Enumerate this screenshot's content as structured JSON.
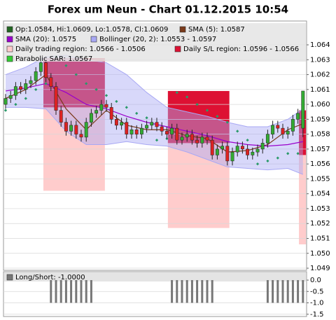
{
  "chart_data": {
    "type": "candlestick",
    "title": "Forex um Neun - Chart 01.12.2015 10:54",
    "ohlc_name": "Op:1.0584, Hi:1.0609, Lo:1.0578, Cl:1.0609",
    "ohlc_color": "#226622",
    "up_color": "#33aa33",
    "down_color": "#dd2222",
    "open": [
      1.06,
      1.0604,
      1.0606,
      1.0612,
      1.061,
      1.0614,
      1.0616,
      1.0622,
      1.0628,
      1.0618,
      1.0612,
      1.0596,
      1.0588,
      1.0582,
      1.0586,
      1.058,
      1.0578,
      1.0588,
      1.0594,
      1.0596,
      1.06,
      1.0598,
      1.059,
      1.0586,
      1.0588,
      1.058,
      1.0583,
      1.058,
      1.0584,
      1.0586,
      1.0588,
      1.0585,
      1.0582,
      1.058,
      1.0584,
      1.0576,
      1.0578,
      1.058,
      1.0576,
      1.0574,
      1.0578,
      1.0576,
      1.0566,
      1.057,
      1.0572,
      1.0562,
      1.0568,
      1.0572,
      1.057,
      1.0566,
      1.0568,
      1.057,
      1.0574,
      1.058,
      1.0586,
      1.0584,
      1.058,
      1.0582,
      1.059,
      1.0584
    ],
    "high": [
      1.0607,
      1.0609,
      1.0615,
      1.0615,
      1.0617,
      1.0619,
      1.0625,
      1.0631,
      1.0631,
      1.0621,
      1.0615,
      1.0599,
      1.0591,
      1.0589,
      1.0589,
      1.0583,
      1.0591,
      1.0597,
      1.0599,
      1.0603,
      1.0603,
      1.0601,
      1.0593,
      1.0591,
      1.0591,
      1.0586,
      1.0586,
      1.0587,
      1.0589,
      1.0591,
      1.0591,
      1.0588,
      1.0585,
      1.0587,
      1.0587,
      1.0581,
      1.0583,
      1.0583,
      1.0579,
      1.0581,
      1.0581,
      1.0579,
      1.0573,
      1.0575,
      1.0575,
      1.0571,
      1.0575,
      1.0575,
      1.0573,
      1.0571,
      1.0573,
      1.0577,
      1.0583,
      1.0589,
      1.0589,
      1.0587,
      1.0585,
      1.0593,
      1.0597,
      1.0609
    ],
    "low": [
      1.0597,
      1.0601,
      1.0603,
      1.0607,
      1.0607,
      1.0611,
      1.0613,
      1.0619,
      1.0615,
      1.0609,
      1.0593,
      1.0585,
      1.0579,
      1.0579,
      1.0577,
      1.0575,
      1.0575,
      1.0585,
      1.0591,
      1.0593,
      1.0595,
      1.0587,
      1.0583,
      1.0583,
      1.0577,
      1.0577,
      1.0577,
      1.0577,
      1.0581,
      1.0583,
      1.0582,
      1.0579,
      1.0577,
      1.0577,
      1.0573,
      1.0573,
      1.0575,
      1.0573,
      1.0571,
      1.0571,
      1.0573,
      1.0563,
      1.0563,
      1.0567,
      1.0559,
      1.0559,
      1.0565,
      1.0567,
      1.0563,
      1.0563,
      1.0565,
      1.0567,
      1.0571,
      1.0577,
      1.0581,
      1.0577,
      1.0577,
      1.0579,
      1.0587,
      1.0578
    ],
    "close": [
      1.0604,
      1.0606,
      1.0612,
      1.061,
      1.0614,
      1.0616,
      1.0622,
      1.0628,
      1.0618,
      1.0612,
      1.0596,
      1.0588,
      1.0582,
      1.0586,
      1.058,
      1.0578,
      1.0588,
      1.0594,
      1.0596,
      1.06,
      1.0598,
      1.059,
      1.0586,
      1.0588,
      1.058,
      1.0583,
      1.058,
      1.0584,
      1.0586,
      1.0588,
      1.0585,
      1.0582,
      1.058,
      1.0584,
      1.0576,
      1.0578,
      1.058,
      1.0576,
      1.0574,
      1.0578,
      1.0576,
      1.0566,
      1.057,
      1.0572,
      1.0562,
      1.0568,
      1.0572,
      1.057,
      1.0566,
      1.0568,
      1.057,
      1.0574,
      1.058,
      1.0586,
      1.0584,
      1.058,
      1.0582,
      1.059,
      1.0594,
      1.0609
    ],
    "ylim": [
      1.04886,
      1.0656
    ],
    "yticks": [
      1.049,
      {
        "value": 1.05,
        "label": "1.050"
      },
      1.051,
      1.052,
      1.053,
      1.054,
      1.055,
      1.056,
      1.057,
      1.058,
      1.059,
      {
        "value": 1.06,
        "label": "1.060"
      },
      1.061,
      1.062,
      1.063,
      1.064
    ],
    "grid": true,
    "bollinger": {
      "name": "Bollinger (20, 2): 1.0553 - 1.0597",
      "color": "#a8a8f4",
      "x": [
        0,
        4,
        8,
        12,
        16,
        20,
        24,
        28,
        32,
        36,
        40,
        44,
        48,
        52,
        56,
        59
      ],
      "upper": [
        1.062,
        1.0625,
        1.0632,
        1.0633,
        1.063,
        1.0628,
        1.062,
        1.0608,
        1.0598,
        1.0595,
        1.0592,
        1.0588,
        1.0585,
        1.0585,
        1.059,
        1.0597
      ],
      "lower": [
        1.0598,
        1.0598,
        1.0597,
        1.0582,
        1.0573,
        1.0573,
        1.0575,
        1.0573,
        1.0572,
        1.0568,
        1.0563,
        1.0558,
        1.0557,
        1.0556,
        1.0557,
        1.0553
      ]
    },
    "series": [
      {
        "name": "SMA (5): 1.0587",
        "color": "#7a3a1a",
        "x": [
          0,
          4,
          8,
          12,
          16,
          20,
          24,
          28,
          32,
          36,
          40,
          44,
          48,
          52,
          56,
          59
        ],
        "values": [
          1.0604,
          1.061,
          1.062,
          1.0597,
          1.0583,
          1.0596,
          1.0586,
          1.0583,
          1.0583,
          1.0579,
          1.0577,
          1.0568,
          1.0569,
          1.0573,
          1.0583,
          1.0587
        ]
      },
      {
        "name": "SMA (20): 1.0575",
        "color": "#9900cc",
        "x": [
          0,
          4,
          8,
          12,
          16,
          20,
          24,
          28,
          32,
          36,
          40,
          44,
          48,
          52,
          56,
          59
        ],
        "values": [
          1.0609,
          1.0611,
          1.0614,
          1.0608,
          1.06,
          1.0597,
          1.0592,
          1.0588,
          1.0585,
          1.0582,
          1.0579,
          1.0575,
          1.0573,
          1.0572,
          1.0573,
          1.0575
        ]
      }
    ],
    "sar": {
      "name": "Parabolic SAR: 1.0567",
      "color": "#2a9a6a",
      "x": [
        0,
        2,
        4,
        6,
        8,
        10,
        12,
        14,
        16,
        18,
        20,
        22,
        24,
        26,
        28,
        30,
        32,
        34,
        36,
        38,
        40,
        42,
        44,
        46,
        48,
        50,
        52,
        54,
        56,
        58
      ],
      "values": [
        1.0596,
        1.06,
        1.0604,
        1.061,
        1.0614,
        1.0632,
        1.0626,
        1.062,
        1.0614,
        1.061,
        1.0606,
        1.0602,
        1.0598,
        1.0594,
        1.0591,
        1.0576,
        1.0577,
        1.0608,
        1.0605,
        1.06,
        1.0596,
        1.0592,
        1.0588,
        1.0582,
        1.0576,
        1.056,
        1.0562,
        1.0564,
        1.0567,
        1.0567
      ]
    },
    "regions": {
      "trading_name": "Daily trading region: 1.0566 - 1.0506",
      "trading_color": "#ffcccc",
      "sl_name": "Daily S/L region: 1.0596 - 1.0566",
      "sl_color": "#dd1133",
      "days": [
        {
          "start": 7.5,
          "end": 19.7,
          "sl": [
            1.0598,
            1.0631
          ],
          "trading": [
            1.0542,
            1.0598
          ]
        },
        {
          "start": 32.2,
          "end": 44.4,
          "sl": [
            1.0574,
            1.0609
          ],
          "trading": [
            1.0517,
            1.0574
          ]
        },
        {
          "start": 58.2,
          "end": 59.6,
          "sl": [
            1.0566,
            1.0596
          ],
          "trading": [
            1.0506,
            1.0566
          ]
        }
      ]
    },
    "panel": {
      "name": "Long/Short: -1.0000",
      "color": "#777777",
      "values": [
        0,
        0,
        0,
        0,
        0,
        0,
        0,
        0,
        0,
        -1,
        -1,
        -1,
        -1,
        -1,
        -1,
        -1,
        -1,
        -1,
        0,
        0,
        0,
        0,
        0,
        0,
        0,
        0,
        0,
        0,
        0,
        0,
        0,
        0,
        0,
        -1,
        -1,
        -1,
        -1,
        -1,
        -1,
        -1,
        -1,
        -1,
        0,
        0,
        0,
        0,
        0,
        0,
        0,
        0,
        0,
        0,
        -1,
        -1,
        -1,
        -1,
        -1,
        -1,
        -1,
        -1
      ],
      "ylim": [
        -1.6,
        0.37
      ],
      "yticks": [
        {
          "value": 0,
          "label": "0.0"
        },
        -0.5,
        {
          "value": -1,
          "label": "-1.0"
        },
        -1.5
      ]
    }
  }
}
